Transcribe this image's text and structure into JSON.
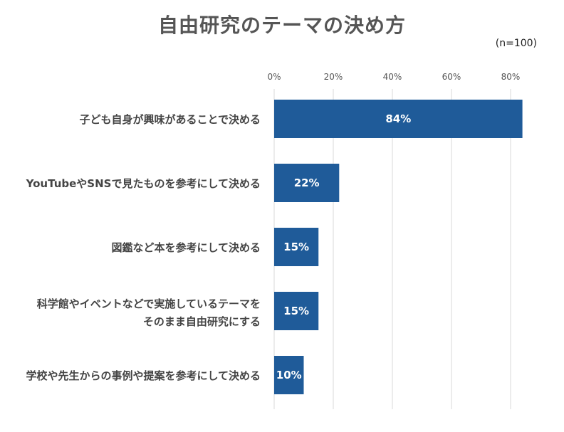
{
  "chart_data": {
    "type": "bar",
    "orientation": "horizontal",
    "title": "自由研究のテーマの決め方",
    "note": "(n=100)",
    "categories": [
      [
        "子ども自身が興味があることで決める"
      ],
      [
        "YouTubeやSNSで見たものを参考にして決める"
      ],
      [
        "図鑑など本を参考にして決める"
      ],
      [
        "科学館やイベントなどで実施しているテーマを",
        "そのまま自由研究にする"
      ],
      [
        "学校や先生からの事例や提案を参考にして決める"
      ]
    ],
    "values": [
      84,
      22,
      15,
      15,
      10
    ],
    "data_labels": [
      "84%",
      "22%",
      "15%",
      "15%",
      "10%"
    ],
    "xlim": [
      0,
      80
    ],
    "ticks": [
      0,
      20,
      40,
      60,
      80
    ],
    "tick_labels": [
      "0%",
      "20%",
      "40%",
      "60%",
      "80%"
    ],
    "bar_color": "#1f5b99",
    "grid": true,
    "legend": "none"
  }
}
